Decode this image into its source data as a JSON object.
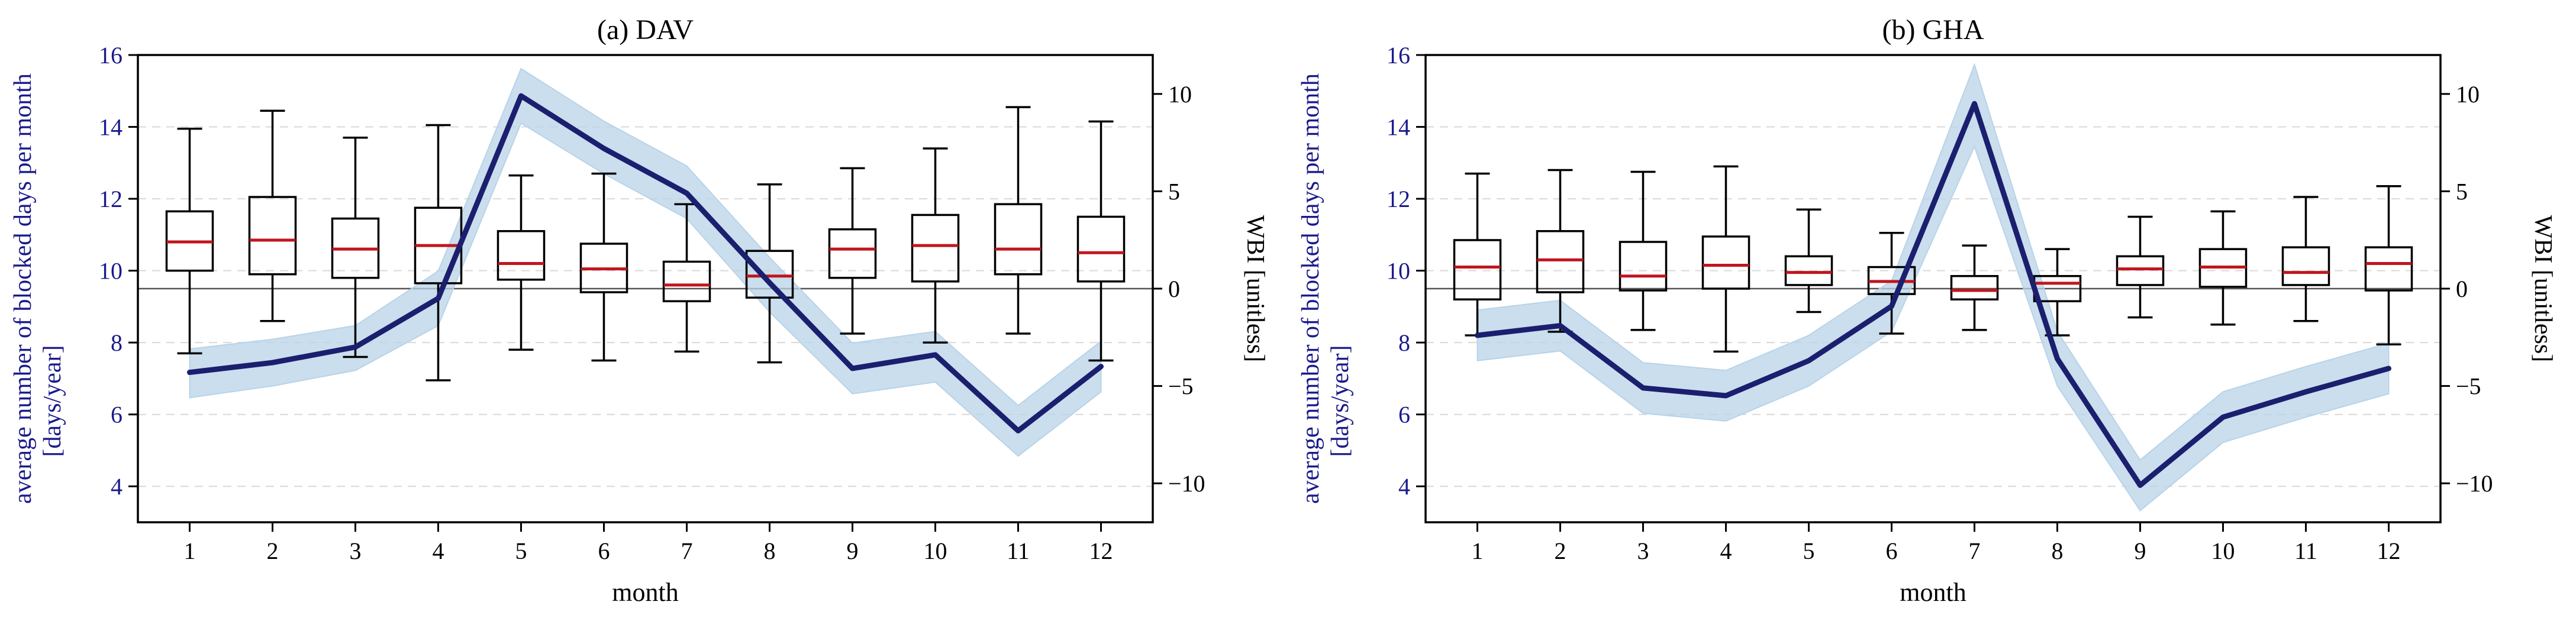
{
  "colors": {
    "wbi_line": "#1b1f6e",
    "wbi_band": "#b8d3e8",
    "median": "#c0161e",
    "box": "#000000",
    "left_axis": "#1a1a8c",
    "grid": "#d9d9d9"
  },
  "chart_data": [
    {
      "type": "box",
      "title": "(a) DAV",
      "xlabel": "month",
      "ylabel_left": [
        "average number of blocked days per month",
        "[days/year]"
      ],
      "ylabel_right": "WBI [unitless]",
      "categories": [
        "1",
        "2",
        "3",
        "4",
        "5",
        "6",
        "7",
        "8",
        "9",
        "10",
        "11",
        "12"
      ],
      "left_axis": {
        "ylim": [
          3,
          16
        ],
        "ticks": [
          "4",
          "6",
          "8",
          "10",
          "12",
          "14",
          "16"
        ]
      },
      "right_axis": {
        "ylim": [
          -12,
          12
        ],
        "ticks": [
          "−10",
          "−5",
          "0",
          "5",
          "10"
        ],
        "reference_line": 0
      },
      "grid": "horizontal dashed",
      "boxes": [
        {
          "whisker_low": 7.7,
          "q1": 10.0,
          "median": 10.8,
          "q3": 11.65,
          "whisker_high": 13.95
        },
        {
          "whisker_low": 8.6,
          "q1": 9.9,
          "median": 10.85,
          "q3": 12.05,
          "whisker_high": 14.45
        },
        {
          "whisker_low": 7.6,
          "q1": 9.8,
          "median": 10.6,
          "q3": 11.45,
          "whisker_high": 13.7
        },
        {
          "whisker_low": 6.95,
          "q1": 9.65,
          "median": 10.7,
          "q3": 11.75,
          "whisker_high": 14.05
        },
        {
          "whisker_low": 7.8,
          "q1": 9.75,
          "median": 10.2,
          "q3": 11.1,
          "whisker_high": 12.65
        },
        {
          "whisker_low": 7.5,
          "q1": 9.4,
          "median": 10.05,
          "q3": 10.75,
          "whisker_high": 12.7
        },
        {
          "whisker_low": 7.75,
          "q1": 9.15,
          "median": 9.6,
          "q3": 10.25,
          "whisker_high": 11.85
        },
        {
          "whisker_low": 7.45,
          "q1": 9.25,
          "median": 9.85,
          "q3": 10.55,
          "whisker_high": 12.4
        },
        {
          "whisker_low": 8.25,
          "q1": 9.8,
          "median": 10.6,
          "q3": 11.15,
          "whisker_high": 12.85
        },
        {
          "whisker_low": 8.0,
          "q1": 9.7,
          "median": 10.7,
          "q3": 11.55,
          "whisker_high": 13.4
        },
        {
          "whisker_low": 8.25,
          "q1": 9.9,
          "median": 10.6,
          "q3": 11.85,
          "whisker_high": 14.55
        },
        {
          "whisker_low": 7.5,
          "q1": 9.7,
          "median": 10.5,
          "q3": 11.5,
          "whisker_high": 14.15
        }
      ],
      "wbi_line": [
        -4.3,
        -3.8,
        -3.0,
        -0.5,
        9.9,
        7.2,
        4.9,
        0.3,
        -4.1,
        -3.4,
        -7.3,
        -4.0
      ],
      "wbi_band_low": [
        -5.6,
        -5.0,
        -4.2,
        -1.9,
        8.5,
        5.9,
        3.6,
        -1.2,
        -5.4,
        -4.8,
        -8.6,
        -5.3
      ],
      "wbi_band_high": [
        -3.1,
        -2.6,
        -1.9,
        0.9,
        11.3,
        8.6,
        6.3,
        1.6,
        -2.8,
        -2.2,
        -6.0,
        -2.7
      ]
    },
    {
      "type": "box",
      "title": "(b) GHA",
      "xlabel": "month",
      "ylabel_left": [
        "average number of blocked days per month",
        "[days/year]"
      ],
      "ylabel_right": "WBI [unitless]",
      "categories": [
        "1",
        "2",
        "3",
        "4",
        "5",
        "6",
        "7",
        "8",
        "9",
        "10",
        "11",
        "12"
      ],
      "left_axis": {
        "ylim": [
          3,
          16
        ],
        "ticks": [
          "4",
          "6",
          "8",
          "10",
          "12",
          "14",
          "16"
        ]
      },
      "right_axis": {
        "ylim": [
          -12,
          12
        ],
        "ticks": [
          "−10",
          "−5",
          "0",
          "5",
          "10"
        ],
        "reference_line": 0
      },
      "grid": "horizontal dashed",
      "boxes": [
        {
          "whisker_low": 8.2,
          "q1": 9.2,
          "median": 10.1,
          "q3": 10.85,
          "whisker_high": 12.7
        },
        {
          "whisker_low": 8.3,
          "q1": 9.4,
          "median": 10.3,
          "q3": 11.1,
          "whisker_high": 12.8
        },
        {
          "whisker_low": 8.35,
          "q1": 9.45,
          "median": 9.85,
          "q3": 10.8,
          "whisker_high": 12.75
        },
        {
          "whisker_low": 7.75,
          "q1": 9.5,
          "median": 10.15,
          "q3": 10.95,
          "whisker_high": 12.9
        },
        {
          "whisker_low": 8.85,
          "q1": 9.6,
          "median": 9.95,
          "q3": 10.4,
          "whisker_high": 11.7
        },
        {
          "whisker_low": 8.25,
          "q1": 9.35,
          "median": 9.7,
          "q3": 10.1,
          "whisker_high": 11.05
        },
        {
          "whisker_low": 8.35,
          "q1": 9.2,
          "median": 9.45,
          "q3": 9.85,
          "whisker_high": 10.7
        },
        {
          "whisker_low": 8.2,
          "q1": 9.15,
          "median": 9.65,
          "q3": 9.85,
          "whisker_high": 10.6
        },
        {
          "whisker_low": 8.7,
          "q1": 9.6,
          "median": 10.05,
          "q3": 10.4,
          "whisker_high": 11.5
        },
        {
          "whisker_low": 8.5,
          "q1": 9.55,
          "median": 10.1,
          "q3": 10.6,
          "whisker_high": 11.65
        },
        {
          "whisker_low": 8.6,
          "q1": 9.6,
          "median": 9.95,
          "q3": 10.65,
          "whisker_high": 12.05
        },
        {
          "whisker_low": 7.95,
          "q1": 9.45,
          "median": 10.2,
          "q3": 10.65,
          "whisker_high": 12.35
        }
      ],
      "wbi_line": [
        -2.4,
        -1.9,
        -5.1,
        -5.5,
        -3.7,
        -0.9,
        9.5,
        -3.6,
        -10.1,
        -6.6,
        -5.3,
        -4.1
      ],
      "wbi_band_low": [
        -3.7,
        -3.2,
        -6.4,
        -6.8,
        -5.0,
        -2.2,
        7.3,
        -5.0,
        -11.4,
        -7.9,
        -6.6,
        -5.4
      ],
      "wbi_band_high": [
        -1.1,
        -0.6,
        -3.8,
        -4.2,
        -2.4,
        0.4,
        11.5,
        -2.2,
        -8.8,
        -5.3,
        -4.0,
        -2.8
      ]
    }
  ]
}
